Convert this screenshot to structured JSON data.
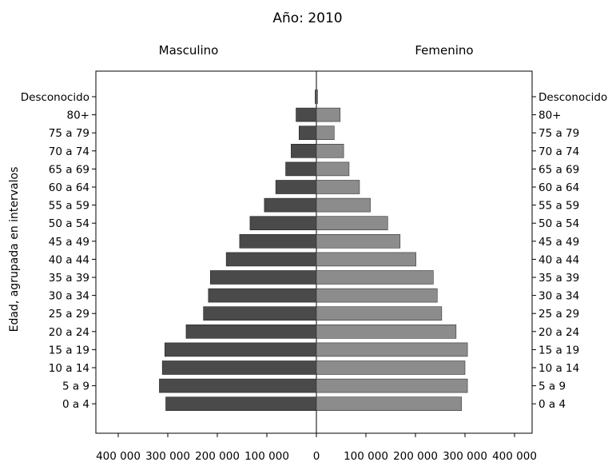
{
  "chart_data": {
    "type": "bar",
    "title": "Año: 2010",
    "left_label": "Masculino",
    "right_label": "Femenino",
    "ylabel": "Edad, agrupada en intervalos",
    "categories": [
      "Desconocido",
      "80+",
      "75 a 79",
      "70 a 74",
      "65 a 69",
      "60 a 64",
      "55 a 59",
      "50 a 54",
      "45 a 49",
      "40 a 44",
      "35 a 39",
      "30 a 34",
      "25 a 29",
      "20 a 24",
      "15 a 19",
      "10 a 14",
      "5 a 9",
      "0 a 4"
    ],
    "series": [
      {
        "name": "Masculino",
        "color": "#4a4a4a",
        "values": [
          2000,
          41000,
          35000,
          51000,
          62000,
          82000,
          105000,
          134000,
          155000,
          182000,
          214000,
          218000,
          228000,
          263000,
          306000,
          311000,
          317000,
          304000
        ]
      },
      {
        "name": "Femenino",
        "color": "#8c8c8c",
        "values": [
          2000,
          48000,
          36000,
          55000,
          66000,
          87000,
          109000,
          144000,
          169000,
          201000,
          236000,
          244000,
          253000,
          282000,
          305000,
          300000,
          305000,
          293000
        ]
      }
    ],
    "xlim": [
      -400000,
      400000
    ],
    "x_ticks": [
      {
        "value": -400000,
        "label": "400 000"
      },
      {
        "value": -300000,
        "label": "300 000"
      },
      {
        "value": -200000,
        "label": "200 000"
      },
      {
        "value": -100000,
        "label": "100 000"
      },
      {
        "value": 0,
        "label": "0"
      },
      {
        "value": 100000,
        "label": "100 000"
      },
      {
        "value": 200000,
        "label": "200 000"
      },
      {
        "value": 300000,
        "label": "300 000"
      },
      {
        "value": 400000,
        "label": "400 000"
      }
    ],
    "grid": false
  }
}
